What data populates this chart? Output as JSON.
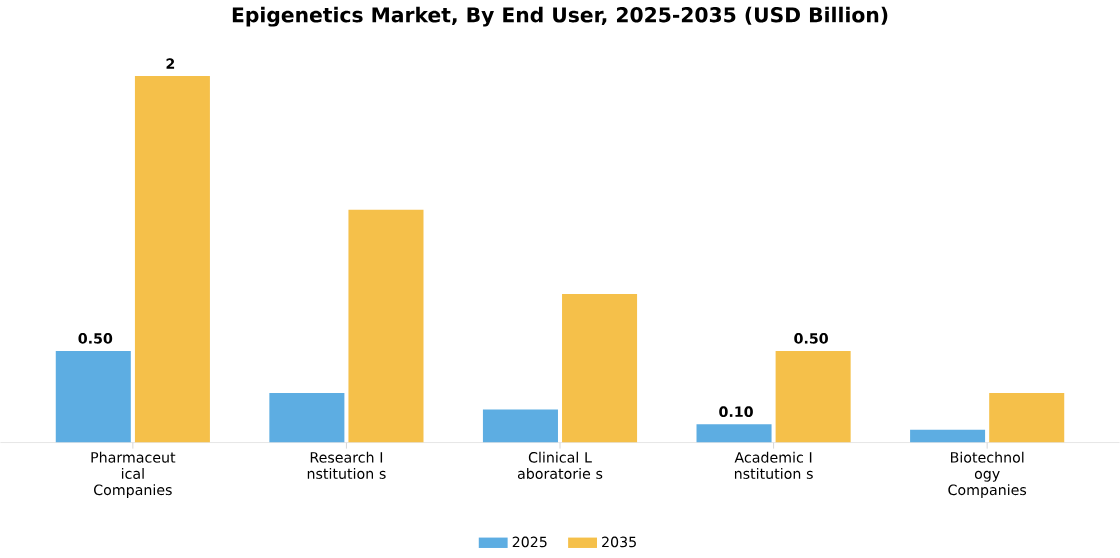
{
  "chart_data": {
    "type": "bar",
    "title": "Epigenetics Market, By End User, 2025-2035 (USD Billion)",
    "categories": [
      "Pharmaceut ical Companies",
      "Research I nstitution s",
      "Clinical L aboratorie s",
      "Academic I nstitution s",
      "Biotechnol ogy Companies"
    ],
    "series": [
      {
        "name": "2025",
        "color": "#5dade2",
        "values": [
          0.5,
          0.27,
          0.18,
          0.1,
          0.07
        ],
        "value_labels": [
          "0.50",
          null,
          null,
          "0.10",
          null
        ]
      },
      {
        "name": "2035",
        "color": "#f5c04a",
        "values": [
          2,
          1.27,
          0.81,
          0.5,
          0.27
        ],
        "value_labels": [
          "2",
          null,
          null,
          "0.50",
          null
        ]
      }
    ],
    "legend": "bottom"
  }
}
